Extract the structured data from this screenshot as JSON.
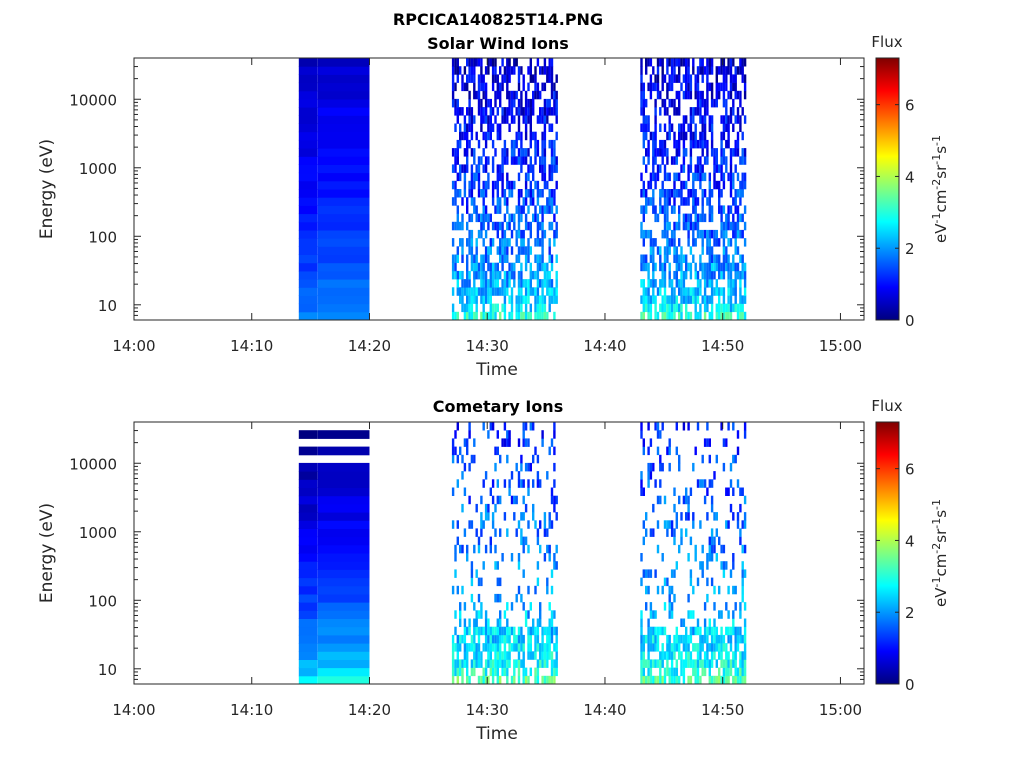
{
  "figure_title": "RPCICA140825T14.PNG",
  "colors": {
    "colormap": [
      "#00007f",
      "#0000ff",
      "#007fff",
      "#00ffff",
      "#7fff7f",
      "#ffff00",
      "#ff7f00",
      "#ff0000",
      "#7f0000"
    ],
    "axis": "#262626"
  },
  "chart_data": [
    {
      "type": "heatmap",
      "title": "Solar Wind Ions",
      "xlabel": "Time",
      "ylabel": "Energy (eV)",
      "x_ticks": [
        "14:00",
        "14:10",
        "14:20",
        "14:30",
        "14:40",
        "14:50",
        "15:00"
      ],
      "x_range_minutes": [
        0,
        62
      ],
      "y_scale": "log",
      "y_ticks": [
        "10",
        "100",
        "1000",
        "10000"
      ],
      "y_range": [
        6,
        40000
      ],
      "colorbar": {
        "title": "Flux",
        "label": "eV-1cm-2sr-1s-1",
        "ticks": [
          "0",
          "2",
          "4",
          "6"
        ],
        "range": [
          0,
          7.3
        ]
      },
      "data_blocks": [
        {
          "start": "14:14",
          "end": "14:20",
          "pattern": "dense",
          "flux_low_energy": 2.0,
          "flux_high_energy": 0.6
        },
        {
          "start": "14:27",
          "end": "14:36",
          "pattern": "sparse",
          "flux_low_energy": 3.0,
          "flux_high_energy": 0.6
        },
        {
          "start": "14:43",
          "end": "14:52",
          "pattern": "sparse",
          "flux_low_energy": 3.0,
          "flux_high_energy": 0.6
        }
      ],
      "grid": false
    },
    {
      "type": "heatmap",
      "title": "Cometary Ions",
      "xlabel": "Time",
      "ylabel": "Energy (eV)",
      "x_ticks": [
        "14:00",
        "14:10",
        "14:20",
        "14:30",
        "14:40",
        "14:50",
        "15:00"
      ],
      "x_range_minutes": [
        0,
        62
      ],
      "y_scale": "log",
      "y_ticks": [
        "10",
        "100",
        "1000",
        "10000"
      ],
      "y_range": [
        6,
        40000
      ],
      "colorbar": {
        "title": "Flux",
        "label": "eV-1cm-2sr-1s-1",
        "ticks": [
          "0",
          "2",
          "4",
          "6"
        ],
        "range": [
          0,
          7.3
        ]
      },
      "data_blocks": [
        {
          "start": "14:14",
          "end": "14:20",
          "pattern": "dense",
          "flux_low_energy": 2.8,
          "flux_high_energy": 0.2
        },
        {
          "start": "14:27",
          "end": "14:36",
          "pattern": "sparse",
          "flux_low_energy": 3.3,
          "flux_high_energy": 1.2
        },
        {
          "start": "14:43",
          "end": "14:52",
          "pattern": "sparse",
          "flux_low_energy": 3.3,
          "flux_high_energy": 1.2
        }
      ],
      "grid": false
    }
  ]
}
